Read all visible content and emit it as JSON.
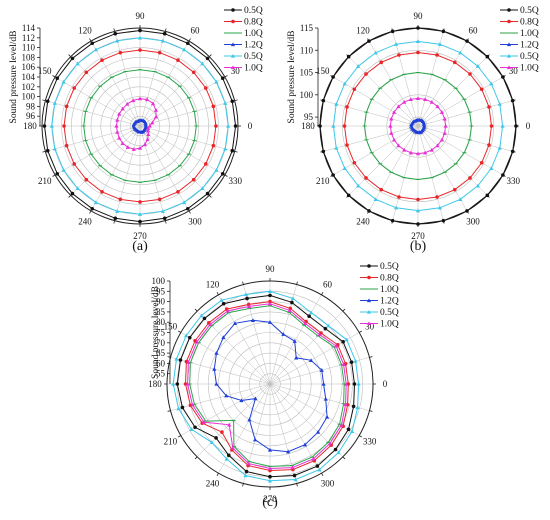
{
  "figure": {
    "panel_labels": [
      "(a)",
      "(b)",
      "(c)"
    ]
  },
  "legend_labels": [
    "0.5Q",
    "0.8Q",
    "1.0Q",
    "1.2Q",
    "0.5Q",
    "1.0Q"
  ],
  "colors": {
    "series": [
      "#111111",
      "#e8262a",
      "#2aa64a",
      "#1f3fd8",
      "#3dc7e8",
      "#e830d4"
    ],
    "grid": "#bdbdbd",
    "axis": "#222222"
  },
  "chart_data": [
    {
      "type": "line",
      "polar": true,
      "panel": "(a)",
      "ylabel": "Sound pressure level/dB",
      "rlim": [
        94,
        114
      ],
      "rticks": [
        "96",
        "98",
        "100",
        "102",
        "104",
        "106",
        "108",
        "110",
        "112",
        "114"
      ],
      "angle_ticks": [
        "0",
        "30",
        "60",
        "90",
        "120",
        "150",
        "180",
        "210",
        "240",
        "270",
        "300",
        "330"
      ],
      "angles_deg": [
        0,
        15,
        30,
        45,
        60,
        75,
        90,
        105,
        120,
        135,
        150,
        165,
        180,
        195,
        210,
        225,
        240,
        255,
        270,
        285,
        300,
        315,
        330,
        345
      ],
      "grid": true,
      "legend_position": "top-right",
      "series": [
        {
          "name": "0.5Q",
          "values": [
            113.5,
            113.5,
            113.5,
            113.5,
            113.5,
            113.5,
            113.5,
            113.5,
            113.5,
            113.5,
            113.5,
            113.5,
            113.5,
            113.5,
            113.5,
            113.5,
            113.5,
            113.5,
            113.5,
            113.5,
            113.5,
            113.5,
            113.5,
            113.5
          ]
        },
        {
          "name": "0.8Q",
          "values": [
            109.5,
            109.5,
            109.5,
            109.5,
            109.5,
            109.5,
            109.5,
            109.5,
            109.5,
            109.5,
            109.5,
            109.5,
            109.5,
            109.5,
            109.5,
            109.5,
            109.5,
            109.5,
            109.5,
            109.5,
            109.5,
            109.5,
            109.5,
            109.5
          ]
        },
        {
          "name": "1.0Q",
          "values": [
            105.5,
            105.5,
            105.5,
            105.5,
            105.5,
            105.5,
            105.5,
            105.5,
            105.5,
            105.5,
            105.5,
            105.5,
            105.5,
            105.5,
            105.5,
            105.5,
            105.5,
            105.5,
            105.5,
            105.5,
            105.5,
            105.5,
            105.5,
            105.5
          ]
        },
        {
          "name": "1.2Q",
          "values": [
            95.2,
            95.2,
            95.3,
            95.3,
            95.3,
            95.2,
            95.2,
            95.1,
            95.1,
            95.2,
            95.2,
            95.3,
            95.3,
            95.2,
            95.2,
            95.1,
            95.1,
            95.2,
            95.2,
            95.3,
            95.3,
            95.2,
            95.2,
            95.2
          ]
        },
        {
          "name": "0.5Q",
          "values": [
            112.0,
            112.0,
            112.0,
            112.0,
            112.0,
            112.0,
            112.0,
            112.0,
            112.0,
            112.0,
            112.0,
            112.0,
            112.0,
            112.0,
            112.0,
            112.0,
            112.0,
            112.0,
            112.0,
            112.0,
            112.0,
            112.0,
            112.0,
            112.0
          ]
        },
        {
          "name": "1.0Q",
          "values": [
            96.0,
            96.6,
            97.8,
            98.6,
            99.3,
            99.6,
            99.6,
            99.4,
            99.2,
            99.0,
            98.9,
            98.8,
            98.8,
            98.8,
            98.9,
            99.0,
            99.0,
            98.9,
            98.5,
            97.9,
            97.1,
            96.4,
            95.9,
            95.7
          ]
        }
      ]
    },
    {
      "type": "line",
      "polar": true,
      "panel": "(b)",
      "ylabel": "Sound pressure level/dB",
      "rlim": [
        93,
        115
      ],
      "rticks": [
        "95",
        "100",
        "105",
        "110",
        "115"
      ],
      "angle_ticks": [
        "0",
        "30",
        "60",
        "90",
        "120",
        "150",
        "180",
        "210",
        "240",
        "270",
        "300",
        "330"
      ],
      "angles_deg": [
        0,
        15,
        30,
        45,
        60,
        75,
        90,
        105,
        120,
        135,
        150,
        165,
        180,
        195,
        210,
        225,
        240,
        255,
        270,
        285,
        300,
        315,
        330,
        345
      ],
      "grid": true,
      "legend_position": "top-right",
      "series": [
        {
          "name": "0.5Q",
          "values": [
            115.0,
            115.0,
            115.0,
            115.0,
            115.0,
            115.0,
            115.0,
            115.0,
            115.0,
            115.0,
            115.0,
            115.0,
            115.0,
            115.0,
            115.0,
            115.0,
            115.0,
            115.0,
            115.0,
            115.0,
            115.0,
            115.0,
            115.0,
            115.0
          ]
        },
        {
          "name": "0.8Q",
          "values": [
            109.5,
            109.5,
            109.5,
            109.5,
            109.5,
            109.5,
            109.5,
            109.5,
            109.5,
            109.5,
            109.5,
            109.5,
            109.5,
            109.5,
            109.5,
            109.5,
            109.5,
            109.5,
            109.5,
            109.5,
            109.5,
            109.5,
            109.5,
            109.5
          ]
        },
        {
          "name": "1.0Q",
          "values": [
            105.0,
            105.0,
            105.0,
            105.0,
            105.0,
            105.0,
            105.0,
            105.0,
            105.0,
            105.0,
            105.0,
            105.0,
            105.0,
            105.0,
            105.0,
            105.0,
            105.0,
            105.0,
            105.0,
            105.0,
            105.0,
            105.0,
            105.0,
            105.0
          ]
        },
        {
          "name": "1.2Q",
          "values": [
            94.4,
            94.4,
            94.5,
            94.5,
            94.5,
            94.4,
            94.4,
            94.3,
            94.3,
            94.4,
            94.4,
            94.5,
            94.5,
            94.4,
            94.4,
            94.3,
            94.3,
            94.4,
            94.4,
            94.5,
            94.5,
            94.4,
            94.4,
            94.4
          ]
        },
        {
          "name": "0.5Q",
          "values": [
            112.0,
            112.0,
            112.0,
            112.0,
            112.0,
            112.0,
            112.0,
            112.0,
            112.0,
            112.0,
            112.0,
            112.0,
            112.0,
            112.0,
            112.0,
            112.0,
            112.0,
            112.0,
            112.0,
            112.0,
            112.0,
            112.0,
            112.0,
            112.0
          ]
        },
        {
          "name": "1.0Q",
          "values": [
            99.2,
            99.2,
            99.2,
            99.2,
            99.2,
            99.2,
            99.2,
            99.2,
            99.2,
            99.2,
            99.2,
            99.2,
            99.2,
            99.2,
            99.2,
            99.2,
            99.2,
            99.2,
            99.2,
            99.2,
            99.2,
            99.2,
            99.2,
            99.2
          ]
        }
      ]
    },
    {
      "type": "line",
      "polar": true,
      "panel": "(c)",
      "ylabel": "Sound pressure level/dB",
      "rlim": [
        50,
        100
      ],
      "rticks": [
        "55",
        "60",
        "65",
        "70",
        "75",
        "80",
        "85",
        "90",
        "95",
        "100"
      ],
      "angle_ticks": [
        "0",
        "30",
        "60",
        "90",
        "120",
        "150",
        "180",
        "210",
        "240",
        "270",
        "300",
        "330"
      ],
      "angles_deg": [
        0,
        15,
        30,
        45,
        60,
        75,
        90,
        105,
        120,
        135,
        150,
        165,
        180,
        195,
        210,
        225,
        240,
        255,
        270,
        285,
        300,
        315,
        330,
        345
      ],
      "grid": true,
      "legend_position": "top-right",
      "series": [
        {
          "name": "0.5Q",
          "values": [
            91,
            91,
            91,
            88,
            88,
            91,
            93,
            93,
            95,
            95,
            95,
            95,
            95,
            94,
            92,
            87,
            90,
            94,
            95,
            96,
            96,
            95,
            94,
            92
          ]
        },
        {
          "name": "0.8Q",
          "values": [
            88,
            88,
            88,
            85,
            85,
            88,
            90,
            90,
            92,
            92,
            92,
            92,
            91,
            90,
            88,
            83,
            87,
            91,
            92,
            93,
            93,
            92,
            91,
            89
          ]
        },
        {
          "name": "1.0Q",
          "values": [
            86,
            86,
            86,
            83,
            83,
            86,
            88,
            88,
            90,
            90,
            90,
            90,
            89,
            88,
            86,
            75,
            85,
            89,
            90,
            91,
            91,
            90,
            89,
            87
          ]
        },
        {
          "name": "1.2Q",
          "values": [
            76,
            76,
            73,
            68,
            74,
            75,
            80,
            82,
            84,
            82,
            80,
            78,
            76,
            72,
            66,
            60,
            70,
            78,
            82,
            84,
            84,
            83,
            82,
            78
          ]
        },
        {
          "name": "0.5Q",
          "values": [
            93,
            93,
            93,
            90,
            90,
            93,
            95,
            95,
            97,
            97,
            97,
            97,
            97,
            96,
            94,
            90,
            92,
            96,
            97,
            98,
            98,
            97,
            96,
            94
          ]
        },
        {
          "name": "1.0Q",
          "values": [
            87,
            87,
            87,
            84,
            84,
            87,
            89,
            89,
            91,
            91,
            91,
            91,
            90,
            89,
            87,
            78,
            86,
            90,
            91,
            92,
            92,
            91,
            90,
            88
          ]
        }
      ]
    }
  ]
}
